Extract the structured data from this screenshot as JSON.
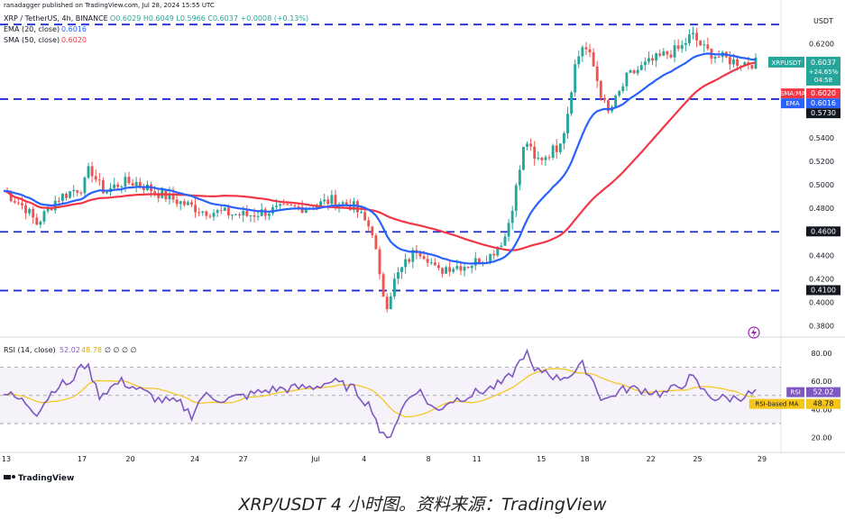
{
  "meta": {
    "publisher": "ranadagger published on TradingView.com, Jul 28, 2024 15:55 UTC",
    "symbol_line": "XRP / TetherUS, 4h, BINANCE",
    "ohlc": "O0.6029 H0.6049 L0.5966 C0.6037 +0.0008 (+0.13%)",
    "ema_label": "EMA (20, close)",
    "ema_value": "0.6016",
    "sma_label": "SMA (50, close)",
    "sma_value": "0.6020",
    "rsi_label": "RSI (14, close)",
    "rsi_values": "52.02",
    "rsi_ma_value": "48.78",
    "rsi_extra": "∅ ∅ ∅ ∅",
    "currency": "USDT",
    "watermark": "TradingView",
    "caption": "XRP/USDT 4 小时图。资料来源：TradingView"
  },
  "price_tags": [
    {
      "label": "XRPUSDT",
      "value": "0.6037",
      "sub1": "+24.65%",
      "sub2": "04:58",
      "color": "#26a69a"
    },
    {
      "label": "SMA:MA",
      "value": "0.6020",
      "color": "#f23645"
    },
    {
      "label": "EMA",
      "value": "0.6016",
      "color": "#2962ff"
    },
    {
      "label": "",
      "value": "0.5730",
      "color": "#131722"
    },
    {
      "label": "",
      "value": "0.4600",
      "color": "#131722"
    },
    {
      "label": "",
      "value": "0.4100",
      "color": "#131722"
    }
  ],
  "rsi_tags": [
    {
      "label": "RSI",
      "value": "52.02",
      "color": "#7e57c2"
    },
    {
      "label": "RSI-based MA",
      "value": "48.78",
      "color": "#f5c518"
    }
  ],
  "colors": {
    "up": "#26a69a",
    "down": "#ef5350",
    "ema": "#2962ff",
    "sma": "#f23645",
    "rsi": "#7e57c2",
    "rsi_ma": "#f5c518",
    "hline": "#1e2ecf"
  },
  "chart_data": [
    {
      "type": "candlestick",
      "title": "XRP / TetherUS, 4h, BINANCE",
      "y_ticks": [
        "0.6200",
        "0.6000",
        "0.5800",
        "0.5600",
        "0.5400",
        "0.5200",
        "0.5000",
        "0.4800",
        "0.4600",
        "0.4400",
        "0.4200",
        "0.4000",
        "0.3800"
      ],
      "ylim": [
        0.372,
        0.642
      ],
      "x_ticks": [
        "13",
        "17",
        "20",
        "24",
        "27",
        "Jul",
        "4",
        "8",
        "11",
        "15",
        "18",
        "22",
        "25",
        "29"
      ],
      "horizontal_levels": [
        0.6365,
        0.573,
        0.46,
        0.41
      ],
      "series": [
        {
          "name": "EMA (20, close)",
          "last": 0.6016
        },
        {
          "name": "SMA (50, close)",
          "last": 0.602
        }
      ],
      "anchors": [
        {
          "day": 0.0,
          "close": 0.495
        },
        {
          "day": 1.0,
          "close": 0.48
        },
        {
          "day": 1.5,
          "close": 0.467
        },
        {
          "day": 2.4,
          "close": 0.488
        },
        {
          "day": 3.2,
          "close": 0.496
        },
        {
          "day": 3.6,
          "close": 0.498
        },
        {
          "day": 3.9,
          "close": 0.515
        },
        {
          "day": 4.3,
          "close": 0.5
        },
        {
          "day": 4.6,
          "close": 0.494
        },
        {
          "day": 5.3,
          "close": 0.502
        },
        {
          "day": 6.0,
          "close": 0.502
        },
        {
          "day": 7.0,
          "close": 0.493
        },
        {
          "day": 8.0,
          "close": 0.485
        },
        {
          "day": 9.0,
          "close": 0.478
        },
        {
          "day": 10.0,
          "close": 0.476
        },
        {
          "day": 11.0,
          "close": 0.474
        },
        {
          "day": 12.0,
          "close": 0.478
        },
        {
          "day": 13.0,
          "close": 0.48
        },
        {
          "day": 14.0,
          "close": 0.482
        },
        {
          "day": 14.8,
          "close": 0.487
        },
        {
          "day": 15.8,
          "close": 0.482
        },
        {
          "day": 16.7,
          "close": 0.46
        },
        {
          "day": 17.0,
          "close": 0.42
        },
        {
          "day": 17.3,
          "close": 0.397
        },
        {
          "day": 17.7,
          "close": 0.42
        },
        {
          "day": 18.2,
          "close": 0.434
        },
        {
          "day": 18.7,
          "close": 0.446
        },
        {
          "day": 19.2,
          "close": 0.438
        },
        {
          "day": 19.6,
          "close": 0.425
        },
        {
          "day": 20.0,
          "close": 0.43
        },
        {
          "day": 21.0,
          "close": 0.432
        },
        {
          "day": 22.0,
          "close": 0.44
        },
        {
          "day": 22.7,
          "close": 0.457
        },
        {
          "day": 23.2,
          "close": 0.5
        },
        {
          "day": 23.6,
          "close": 0.54
        },
        {
          "day": 24.0,
          "close": 0.52
        },
        {
          "day": 24.5,
          "close": 0.525
        },
        {
          "day": 25.0,
          "close": 0.532
        },
        {
          "day": 25.4,
          "close": 0.55
        },
        {
          "day": 25.8,
          "close": 0.6
        },
        {
          "day": 26.2,
          "close": 0.62
        },
        {
          "day": 26.6,
          "close": 0.605
        },
        {
          "day": 27.0,
          "close": 0.578
        },
        {
          "day": 27.3,
          "close": 0.56
        },
        {
          "day": 27.7,
          "close": 0.573
        },
        {
          "day": 28.2,
          "close": 0.592
        },
        {
          "day": 29.0,
          "close": 0.602
        },
        {
          "day": 29.8,
          "close": 0.61
        },
        {
          "day": 30.6,
          "close": 0.616
        },
        {
          "day": 31.1,
          "close": 0.628
        },
        {
          "day": 31.7,
          "close": 0.615
        },
        {
          "day": 32.2,
          "close": 0.61
        },
        {
          "day": 33.0,
          "close": 0.605
        },
        {
          "day": 33.5,
          "close": 0.604
        },
        {
          "day": 34.0,
          "close": 0.6037
        }
      ]
    },
    {
      "type": "line",
      "title": "RSI (14, close)",
      "y_ticks": [
        "80.00",
        "60.00",
        "40.00",
        "20.00"
      ],
      "ylim": [
        12,
        89
      ],
      "band": [
        70,
        30
      ],
      "midline": 50,
      "series": [
        {
          "name": "RSI",
          "last": 52.02
        },
        {
          "name": "RSI-based MA",
          "last": 48.78
        }
      ],
      "anchors": [
        {
          "day": 0.0,
          "rsi": 52
        },
        {
          "day": 1.0,
          "rsi": 45
        },
        {
          "day": 1.5,
          "rsi": 38
        },
        {
          "day": 2.4,
          "rsi": 57
        },
        {
          "day": 3.2,
          "rsi": 60
        },
        {
          "day": 3.5,
          "rsi": 74
        },
        {
          "day": 3.9,
          "rsi": 68
        },
        {
          "day": 4.3,
          "rsi": 50
        },
        {
          "day": 5.3,
          "rsi": 60
        },
        {
          "day": 6.0,
          "rsi": 55
        },
        {
          "day": 7.0,
          "rsi": 47
        },
        {
          "day": 8.0,
          "rsi": 44
        },
        {
          "day": 8.5,
          "rsi": 36
        },
        {
          "day": 9.0,
          "rsi": 50
        },
        {
          "day": 10.0,
          "rsi": 47
        },
        {
          "day": 11.0,
          "rsi": 50
        },
        {
          "day": 12.0,
          "rsi": 54
        },
        {
          "day": 13.0,
          "rsi": 55
        },
        {
          "day": 14.0,
          "rsi": 56
        },
        {
          "day": 14.8,
          "rsi": 60
        },
        {
          "day": 15.8,
          "rsi": 55
        },
        {
          "day": 16.7,
          "rsi": 40
        },
        {
          "day": 17.0,
          "rsi": 25
        },
        {
          "day": 17.3,
          "rsi": 17
        },
        {
          "day": 17.7,
          "rsi": 30
        },
        {
          "day": 18.2,
          "rsi": 46
        },
        {
          "day": 18.7,
          "rsi": 55
        },
        {
          "day": 19.2,
          "rsi": 45
        },
        {
          "day": 19.6,
          "rsi": 38
        },
        {
          "day": 20.0,
          "rsi": 45
        },
        {
          "day": 21.0,
          "rsi": 50
        },
        {
          "day": 22.0,
          "rsi": 55
        },
        {
          "day": 22.7,
          "rsi": 60
        },
        {
          "day": 23.2,
          "rsi": 70
        },
        {
          "day": 23.6,
          "rsi": 82
        },
        {
          "day": 24.0,
          "rsi": 66
        },
        {
          "day": 24.5,
          "rsi": 68
        },
        {
          "day": 25.0,
          "rsi": 62
        },
        {
          "day": 25.4,
          "rsi": 64
        },
        {
          "day": 25.8,
          "rsi": 66
        },
        {
          "day": 26.2,
          "rsi": 72
        },
        {
          "day": 26.6,
          "rsi": 62
        },
        {
          "day": 27.0,
          "rsi": 49
        },
        {
          "day": 27.3,
          "rsi": 47
        },
        {
          "day": 27.7,
          "rsi": 52
        },
        {
          "day": 28.2,
          "rsi": 55
        },
        {
          "day": 29.0,
          "rsi": 54
        },
        {
          "day": 29.8,
          "rsi": 51
        },
        {
          "day": 30.6,
          "rsi": 57
        },
        {
          "day": 31.1,
          "rsi": 63
        },
        {
          "day": 31.7,
          "rsi": 52
        },
        {
          "day": 32.2,
          "rsi": 48
        },
        {
          "day": 33.0,
          "rsi": 48
        },
        {
          "day": 33.5,
          "rsi": 50
        },
        {
          "day": 34.0,
          "rsi": 52.02
        }
      ]
    }
  ]
}
